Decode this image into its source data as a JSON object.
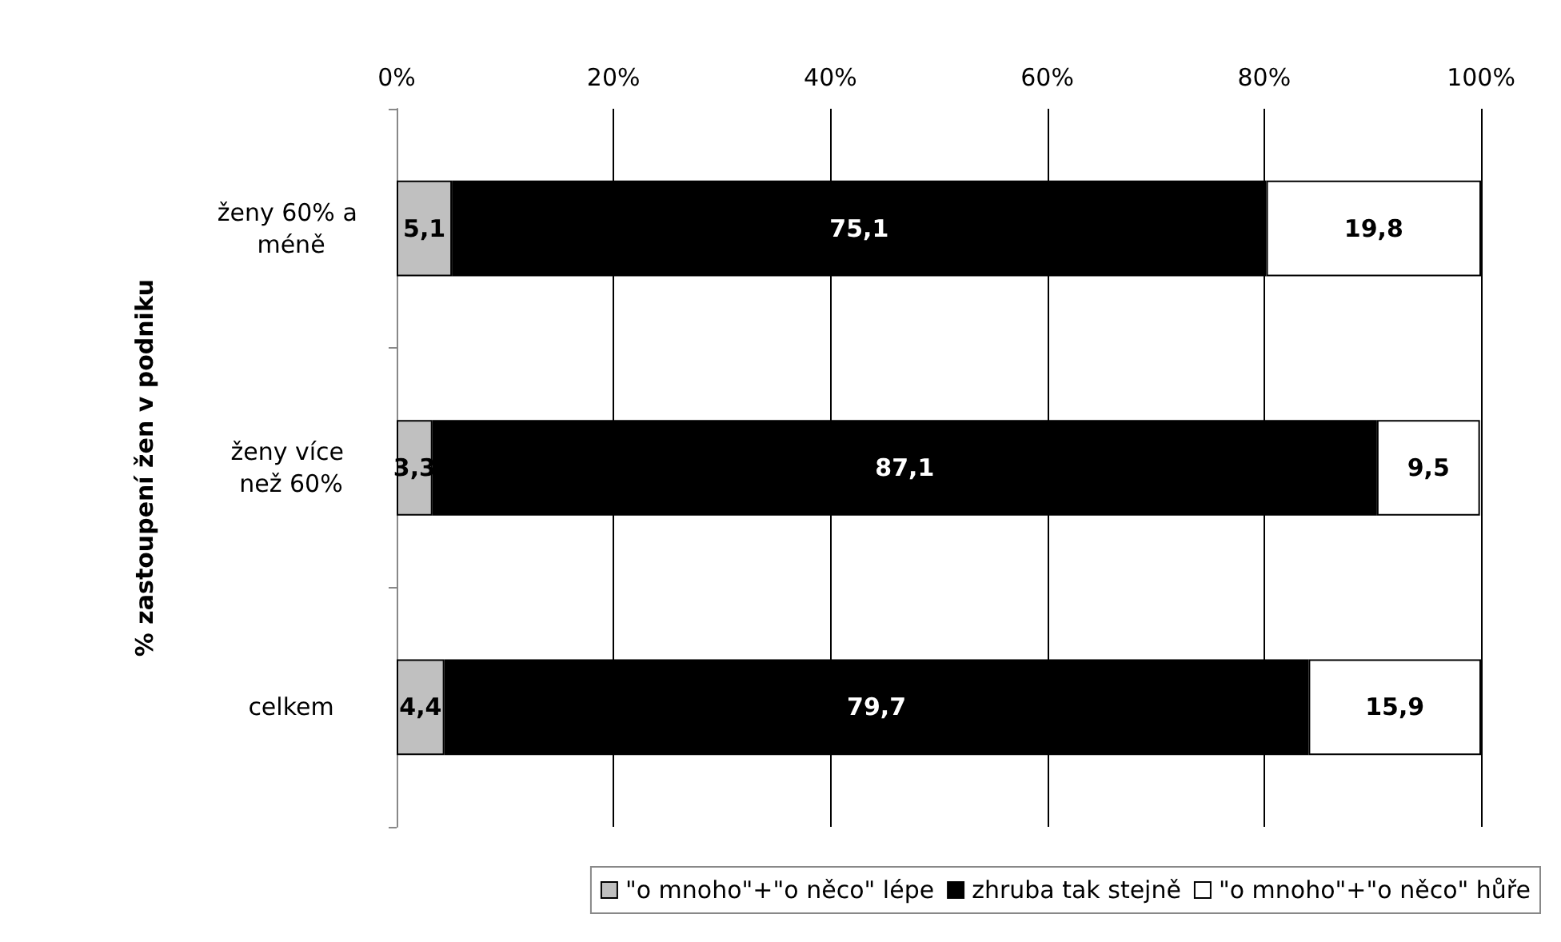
{
  "chart_data": {
    "type": "bar",
    "orientation": "horizontal",
    "stacked": true,
    "ylabel": "% zastoupení žen v podniku",
    "categories": [
      "ženy 60% a méně",
      "ženy více než 60%",
      "celkem"
    ],
    "series": [
      {
        "name": "\"o mnoho\"+\"o něco\" lépe",
        "color": "#c0c0c0",
        "values": [
          5.1,
          3.3,
          4.4
        ],
        "value_labels": [
          "5,1",
          "3,3",
          "4,4"
        ]
      },
      {
        "name": "zhruba tak stejně",
        "color": "#000000",
        "values": [
          75.1,
          87.1,
          79.7
        ],
        "value_labels": [
          "75,1",
          "87,1",
          "79,7"
        ]
      },
      {
        "name": "\"o mnoho\"+\"o něco\" hůře",
        "color": "#ffffff",
        "values": [
          19.8,
          9.5,
          15.9
        ],
        "value_labels": [
          "19,8",
          "9,5",
          "15,9"
        ]
      }
    ],
    "xlim": [
      0,
      100
    ],
    "xticks": [
      {
        "value": 0,
        "label": "0%"
      },
      {
        "value": 20,
        "label": "20%"
      },
      {
        "value": 40,
        "label": "40%"
      },
      {
        "value": 60,
        "label": "60%"
      },
      {
        "value": 80,
        "label": "80%"
      },
      {
        "value": 100,
        "label": "100%"
      }
    ],
    "grid": "x",
    "legend": "bottom"
  }
}
